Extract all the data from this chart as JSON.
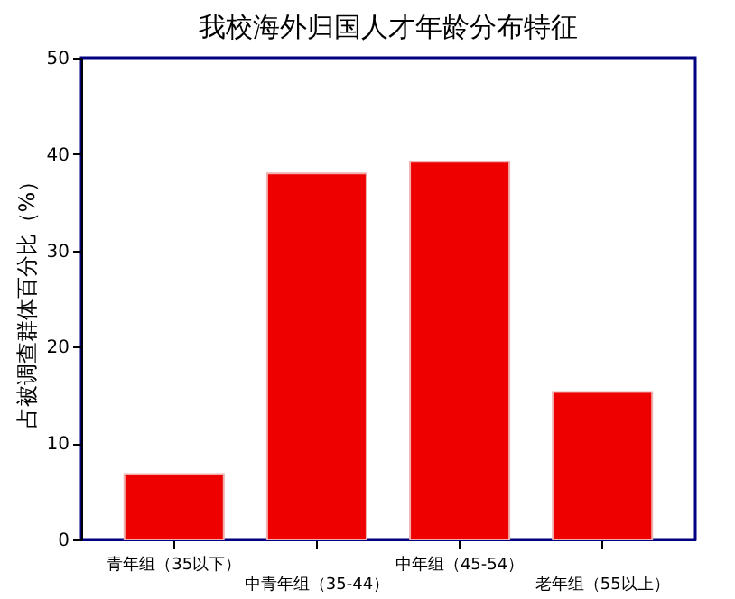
{
  "chart_data": {
    "type": "bar",
    "title": "我校海外归国人才年龄分布特征",
    "ylabel": "占被调查群体百分比（%）",
    "categories": [
      "青年组（35以下）",
      "中青年组（35-44）",
      "中年组（45-54）",
      "老年组（55以上）"
    ],
    "values": [
      6.8,
      38.0,
      39.2,
      15.3
    ],
    "color": "#ee0000",
    "ylim": [
      0,
      50
    ],
    "yticks": [
      0,
      10,
      20,
      30,
      40,
      50
    ],
    "grid": false
  }
}
